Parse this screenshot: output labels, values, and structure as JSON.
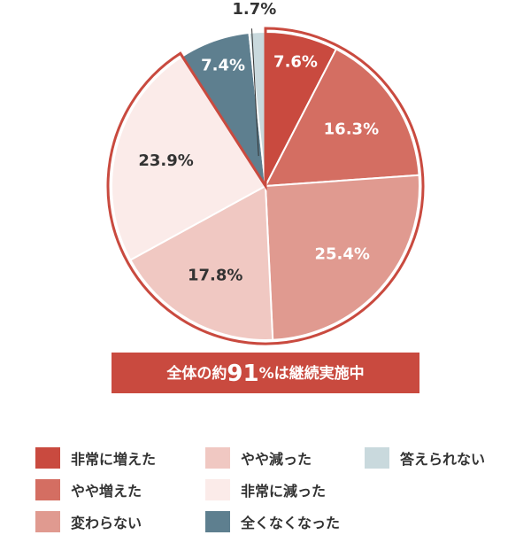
{
  "colors": {
    "outline": "#c94a3f",
    "banner_bg": "#c94a3f",
    "banner_text": "#ffffff",
    "label_light": "#ffffff",
    "label_dark": "#333333"
  },
  "chart_data": {
    "type": "pie",
    "start_angle_deg": 0,
    "direction": "clockwise",
    "slices": [
      {
        "name": "非常に増えた",
        "value": 7.6,
        "label": "7.6%",
        "color": "#c94a3f",
        "label_color": "#ffffff"
      },
      {
        "name": "やや増えた",
        "value": 16.3,
        "label": "16.3%",
        "color": "#d46e62",
        "label_color": "#ffffff"
      },
      {
        "name": "変わらない",
        "value": 25.4,
        "label": "25.4%",
        "color": "#e09a90",
        "label_color": "#ffffff"
      },
      {
        "name": "やや減った",
        "value": 17.8,
        "label": "17.8%",
        "color": "#f0c8c2",
        "label_color": "#333333"
      },
      {
        "name": "非常に減った",
        "value": 23.9,
        "label": "23.9%",
        "color": "#fbebe9",
        "label_color": "#333333"
      },
      {
        "name": "全くなくなった",
        "value": 7.4,
        "label": "7.4%",
        "color": "#5e7f8f",
        "label_color": "#ffffff"
      },
      {
        "name": "答えられない",
        "value": 1.7,
        "label": "1.7%",
        "color": "#c9d9dd",
        "label_color": "#333333"
      }
    ],
    "highlight": {
      "prefix": "全体の約",
      "number": "91",
      "suffix": "%は継続実施中",
      "covers": [
        "非常に増えた",
        "やや増えた",
        "変わらない",
        "やや減った",
        "非常に減った"
      ]
    }
  },
  "legend": [
    {
      "label": "非常に増えた",
      "color": "#c94a3f"
    },
    {
      "label": "やや増えた",
      "color": "#d46e62"
    },
    {
      "label": "変わらない",
      "color": "#e09a90"
    },
    {
      "label": "やや減った",
      "color": "#f0c8c2"
    },
    {
      "label": "非常に減った",
      "color": "#fbebe9"
    },
    {
      "label": "全くなくなった",
      "color": "#5e7f8f"
    },
    {
      "label": "答えられない",
      "color": "#c9d9dd"
    }
  ]
}
